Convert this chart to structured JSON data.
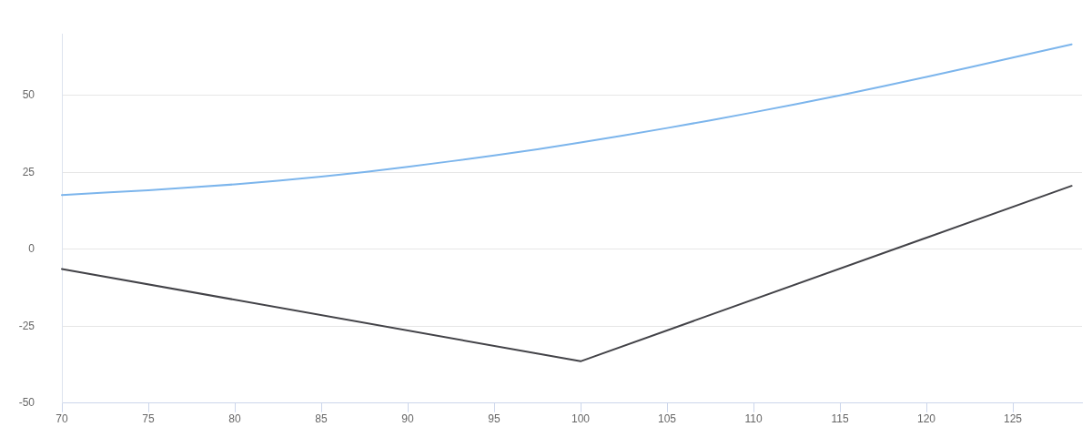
{
  "chart_data": {
    "type": "line",
    "series": [
      {
        "color": "#7cb5ec",
        "x": [
          70,
          72.5,
          75,
          77.5,
          80,
          82.5,
          85,
          87.5,
          90,
          92.5,
          95,
          97.5,
          100,
          102.5,
          105,
          107.5,
          110,
          112.5,
          115,
          117.5,
          120,
          122.5,
          125,
          128.4
        ],
        "values": [
          17.6,
          18.4,
          19.2,
          20.1,
          21.1,
          22.3,
          23.6,
          25.1,
          26.8,
          28.6,
          30.5,
          32.5,
          34.7,
          37.0,
          39.4,
          41.9,
          44.5,
          47.2,
          50.0,
          53.0,
          56.0,
          59.1,
          62.3,
          66.6
        ]
      },
      {
        "color": "#434348",
        "x": [
          70,
          100,
          128.4
        ],
        "values": [
          -6.4,
          -36.4,
          20.6
        ]
      }
    ],
    "xlim": [
      70,
      129
    ],
    "ylim": [
      -50,
      70
    ],
    "xticks": [
      70,
      75,
      80,
      85,
      90,
      95,
      100,
      105,
      110,
      115,
      120,
      125
    ],
    "yticks": [
      -50,
      -25,
      0,
      25,
      50
    ],
    "grid": "y",
    "legend": false,
    "marker": "none"
  }
}
